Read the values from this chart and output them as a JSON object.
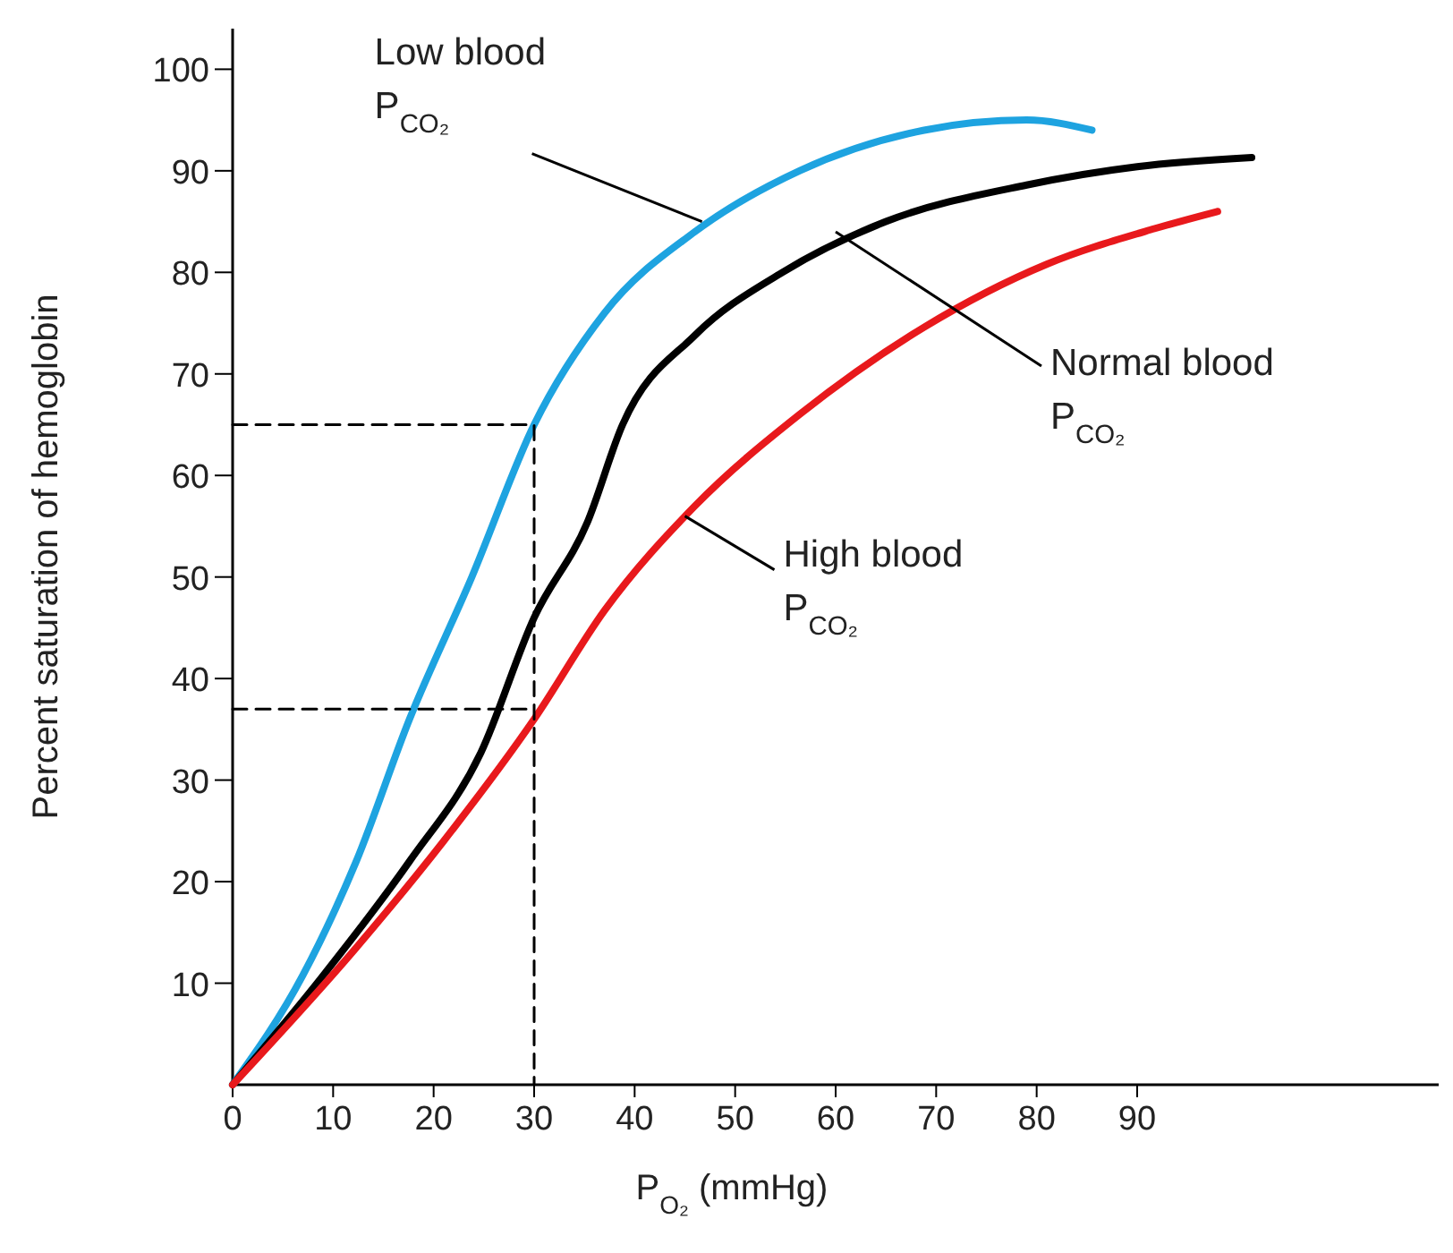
{
  "chart_data": {
    "type": "line",
    "xlabel": "P$_{O₂}$ (mmHg)",
    "ylabel": "Percent saturation of hemoglobin",
    "xlim": [
      0,
      120
    ],
    "ylim": [
      0,
      104
    ],
    "xticks": [
      0,
      10,
      20,
      30,
      40,
      50,
      60,
      70,
      80,
      90
    ],
    "yticks": [
      10,
      20,
      30,
      40,
      50,
      60,
      70,
      80,
      90,
      100
    ],
    "grid": false,
    "marker": "none",
    "series": [
      {
        "color": "#1ea3e0",
        "x": [
          0,
          7,
          12.3,
          17.6,
          23.8,
          30,
          37,
          46,
          56.4,
          68.8,
          79,
          85.5
        ],
        "values": [
          0,
          10.8,
          22,
          36,
          50,
          65,
          76,
          84,
          90,
          94,
          95,
          94
        ]
      },
      {
        "color": "#000000",
        "x": [
          0,
          8.8,
          17.6,
          24.7,
          30,
          35.3,
          38.8,
          46,
          54.7,
          65,
          79,
          90,
          101.4
        ],
        "values": [
          0,
          10.5,
          22,
          32.7,
          46,
          55.4,
          65,
          73.8,
          80,
          85,
          88.6,
          90.4,
          91.3
        ]
      },
      {
        "color": "#e8191c",
        "x": [
          0,
          12.3,
          21,
          30,
          37,
          46,
          56.4,
          68.8,
          81,
          91.7,
          98
        ],
        "values": [
          0,
          13.5,
          24,
          36,
          46.7,
          57,
          66,
          74.6,
          80.8,
          84.3,
          86
        ]
      },
      {
        "color": "#000000",
        "line_style": "dashed",
        "x": [
          0,
          30,
          30
        ],
        "values": [
          65,
          65,
          0
        ]
      },
      {
        "color": "#000000",
        "line_style": "dashed",
        "x": [
          0,
          30
        ],
        "values": [
          37,
          37
        ]
      }
    ],
    "annotations": [
      {
        "text": "Low blood\nP$_{CO₂}$",
        "x": 46.7,
        "y": 85
      },
      {
        "text": "Normal blood\nP$_{CO₂}$",
        "x": 60,
        "y": 84
      },
      {
        "text": "High blood\nP$_{CO₂}$",
        "x": 45,
        "y": 56
      }
    ]
  }
}
